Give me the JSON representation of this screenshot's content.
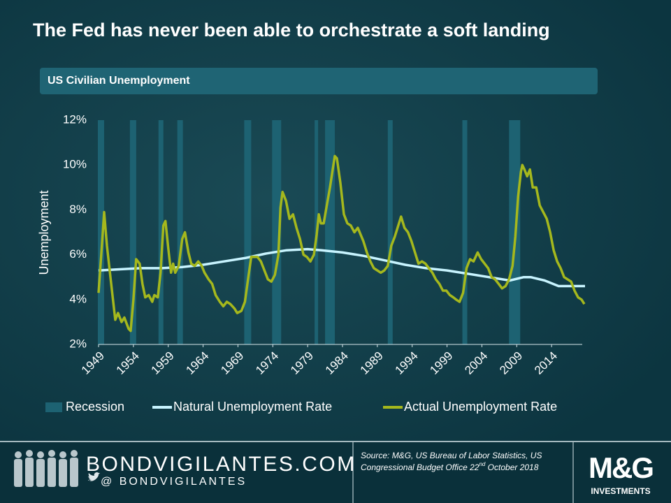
{
  "chart_data": {
    "type": "line",
    "title": "The Fed has never been able to orchestrate a soft landing",
    "subtitle": "US Civilian Unemployment",
    "y_label": "Unemployment",
    "xlim": [
      1949,
      2019
    ],
    "xticks": [
      1949,
      1954,
      1959,
      1964,
      1969,
      1974,
      1979,
      1984,
      1989,
      1994,
      1999,
      2004,
      2009,
      2014
    ],
    "ylim": [
      2,
      12
    ],
    "yticks": [
      {
        "value": 2,
        "label": "2%"
      },
      {
        "value": 4,
        "label": "4%"
      },
      {
        "value": 6,
        "label": "6%"
      },
      {
        "value": 8,
        "label": "8%"
      },
      {
        "value": 10,
        "label": "10%"
      },
      {
        "value": 12,
        "label": "12%"
      }
    ],
    "legend": "bottom",
    "recessions": {
      "name": "Recession",
      "color": "#1d6272",
      "ranges": [
        [
          1948.9,
          1949.8
        ],
        [
          1953.5,
          1954.4
        ],
        [
          1957.6,
          1958.3
        ],
        [
          1960.3,
          1961.1
        ],
        [
          1969.9,
          1970.9
        ],
        [
          1973.9,
          1975.2
        ],
        [
          1980.0,
          1980.5
        ],
        [
          1981.5,
          1982.9
        ],
        [
          1990.5,
          1991.2
        ],
        [
          2001.2,
          2001.9
        ],
        [
          2007.9,
          2009.5
        ]
      ]
    },
    "series": [
      {
        "name": "Natural Unemployment Rate",
        "color": "#c8f4ff",
        "x": [
          1949,
          1952,
          1955,
          1958,
          1961,
          1964,
          1967,
          1970,
          1973,
          1976,
          1979,
          1981,
          1984,
          1987,
          1990,
          1993,
          1996,
          1999,
          2002,
          2005,
          2008,
          2010,
          2011,
          2013,
          2015,
          2016,
          2018.8
        ],
        "values": [
          5.3,
          5.35,
          5.4,
          5.4,
          5.45,
          5.55,
          5.7,
          5.85,
          6.05,
          6.2,
          6.25,
          6.2,
          6.1,
          5.95,
          5.75,
          5.55,
          5.4,
          5.3,
          5.15,
          5.0,
          4.85,
          5.0,
          5.0,
          4.85,
          4.6,
          4.6,
          4.6
        ]
      },
      {
        "name": "Actual Unemployment Rate",
        "color": "#a5b81d",
        "x": [
          1949.0,
          1949.5,
          1949.8,
          1950.2,
          1950.7,
          1951.0,
          1951.4,
          1951.8,
          1952.3,
          1952.7,
          1953.3,
          1953.6,
          1954.0,
          1954.4,
          1954.9,
          1955.3,
          1955.7,
          1956.2,
          1956.7,
          1957.0,
          1957.5,
          1957.9,
          1958.3,
          1958.6,
          1959.0,
          1959.4,
          1959.7,
          1960.0,
          1960.5,
          1961.0,
          1961.4,
          1961.9,
          1962.3,
          1962.8,
          1963.3,
          1963.8,
          1964.2,
          1964.8,
          1965.3,
          1965.8,
          1966.4,
          1966.9,
          1967.4,
          1967.9,
          1968.5,
          1968.9,
          1969.5,
          1970.0,
          1970.4,
          1970.9,
          1971.3,
          1971.8,
          1972.3,
          1972.8,
          1973.3,
          1973.8,
          1974.3,
          1974.8,
          1975.1,
          1975.4,
          1975.9,
          1976.4,
          1976.9,
          1977.4,
          1977.9,
          1978.4,
          1978.9,
          1979.4,
          1979.9,
          1980.3,
          1980.6,
          1980.9,
          1981.3,
          1981.8,
          1982.2,
          1982.6,
          1982.9,
          1983.2,
          1983.7,
          1984.2,
          1984.7,
          1985.2,
          1985.7,
          1986.2,
          1986.6,
          1987.0,
          1987.5,
          1988.0,
          1988.5,
          1989.0,
          1989.5,
          1990.0,
          1990.5,
          1991.0,
          1991.5,
          1992.0,
          1992.4,
          1992.9,
          1993.4,
          1993.9,
          1994.4,
          1994.9,
          1995.4,
          1995.9,
          1996.4,
          1996.9,
          1997.4,
          1997.9,
          1998.4,
          1998.9,
          1999.4,
          1999.9,
          2000.3,
          2000.8,
          2001.3,
          2001.8,
          2002.3,
          2002.8,
          2003.4,
          2003.9,
          2004.4,
          2004.9,
          2005.4,
          2005.9,
          2006.4,
          2006.9,
          2007.4,
          2007.9,
          2008.4,
          2008.8,
          2009.2,
          2009.6,
          2009.8,
          2010.1,
          2010.5,
          2010.9,
          2011.3,
          2011.8,
          2012.3,
          2012.8,
          2013.3,
          2013.8,
          2014.3,
          2014.8,
          2015.3,
          2015.8,
          2016.3,
          2016.8,
          2017.3,
          2017.8,
          2018.3,
          2018.7
        ],
        "values": [
          4.3,
          6.5,
          7.9,
          6.4,
          5.0,
          4.2,
          3.1,
          3.4,
          3.0,
          3.2,
          2.7,
          2.6,
          4.0,
          5.8,
          5.6,
          4.7,
          4.1,
          4.2,
          3.9,
          4.2,
          4.1,
          5.2,
          7.3,
          7.5,
          6.3,
          5.2,
          5.6,
          5.2,
          5.5,
          6.7,
          7.0,
          6.1,
          5.6,
          5.5,
          5.7,
          5.5,
          5.2,
          4.9,
          4.7,
          4.2,
          3.9,
          3.7,
          3.9,
          3.8,
          3.6,
          3.4,
          3.5,
          3.9,
          4.8,
          5.9,
          5.9,
          5.9,
          5.7,
          5.3,
          4.9,
          4.8,
          5.1,
          6.0,
          8.1,
          8.8,
          8.4,
          7.6,
          7.8,
          7.2,
          6.7,
          6.0,
          5.9,
          5.7,
          6.0,
          6.9,
          7.8,
          7.4,
          7.4,
          8.3,
          9.0,
          9.8,
          10.4,
          10.3,
          9.2,
          7.8,
          7.4,
          7.3,
          7.0,
          7.2,
          6.9,
          6.6,
          6.1,
          5.7,
          5.4,
          5.3,
          5.2,
          5.3,
          5.5,
          6.4,
          6.8,
          7.3,
          7.7,
          7.2,
          7.0,
          6.6,
          6.1,
          5.6,
          5.7,
          5.6,
          5.4,
          5.2,
          4.9,
          4.7,
          4.4,
          4.4,
          4.2,
          4.1,
          4.0,
          3.9,
          4.3,
          5.4,
          5.8,
          5.7,
          6.1,
          5.8,
          5.6,
          5.4,
          5.0,
          4.9,
          4.7,
          4.5,
          4.6,
          4.9,
          5.5,
          6.8,
          8.6,
          9.7,
          10.0,
          9.8,
          9.5,
          9.8,
          9.0,
          9.0,
          8.2,
          7.9,
          7.6,
          7.0,
          6.2,
          5.7,
          5.4,
          5.0,
          4.9,
          4.8,
          4.4,
          4.1,
          4.0,
          3.8
        ]
      }
    ]
  },
  "footer": {
    "site": "BONDVIGILANTES.COM",
    "handle": "@ BONDVIGILANTES",
    "source": [
      "Source: M&G, US Bureau of Labor Statistics, US",
      "Congressional Budget Office 22",
      "nd",
      " October 2018"
    ],
    "logo": "M&G",
    "logo_sub": "INVESTMENTS"
  }
}
